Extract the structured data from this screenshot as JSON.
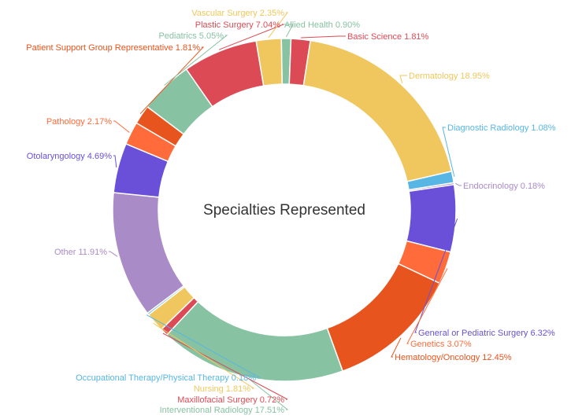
{
  "chart_data": {
    "type": "pie",
    "title": "Specialties Represented",
    "slices": [
      {
        "label": "Allied Health",
        "value": 0.9,
        "display": "0.90%",
        "color": "#87c2a2"
      },
      {
        "label": "Basic Science",
        "value": 1.81,
        "display": "1.81%",
        "color": "#dc4b55"
      },
      {
        "label": "Dermatology",
        "value": 18.95,
        "display": "18.95%",
        "color": "#f0c75e"
      },
      {
        "label": "Diagnostic Radiology",
        "value": 1.08,
        "display": "1.08%",
        "color": "#58b6e4"
      },
      {
        "label": "Endocrinology",
        "value": 0.18,
        "display": "0.18%",
        "color": "#a98bc8"
      },
      {
        "label": "General or Pediatric Surgery",
        "value": 6.32,
        "display": "6.32%",
        "color": "#6a50d8"
      },
      {
        "label": "Genetics",
        "value": 3.07,
        "display": "3.07%",
        "color": "#ff6b3b"
      },
      {
        "label": "Hematology/Oncology",
        "value": 12.45,
        "display": "12.45%",
        "color": "#e8541e"
      },
      {
        "label": "Interventional Radiology",
        "value": 17.51,
        "display": "17.51%",
        "color": "#87c2a2"
      },
      {
        "label": "Maxillofacial Surgery",
        "value": 0.72,
        "display": "0.72%",
        "color": "#dc4b55"
      },
      {
        "label": "Nursing",
        "value": 1.81,
        "display": "1.81%",
        "color": "#f0c75e"
      },
      {
        "label": "Occupational Therapy/Physical Therapy",
        "value": 0.18,
        "display": "0.18%",
        "color": "#58b6e4"
      },
      {
        "label": "Other",
        "value": 11.91,
        "display": "11.91%",
        "color": "#a98bc8"
      },
      {
        "label": "Otolaryngology",
        "value": 4.69,
        "display": "4.69%",
        "color": "#6a50d8"
      },
      {
        "label": "Pathology",
        "value": 2.17,
        "display": "2.17%",
        "color": "#ff6b3b"
      },
      {
        "label": "Patient Support Group Representative",
        "value": 1.81,
        "display": "1.81%",
        "color": "#e8541e"
      },
      {
        "label": "Pediatrics",
        "value": 5.05,
        "display": "5.05%",
        "color": "#87c2a2"
      },
      {
        "label": "Plastic Surgery",
        "value": 7.04,
        "display": "7.04%",
        "color": "#dc4b55"
      },
      {
        "label": "Vascular Surgery",
        "value": 2.35,
        "display": "2.35%",
        "color": "#f0c75e"
      }
    ]
  }
}
